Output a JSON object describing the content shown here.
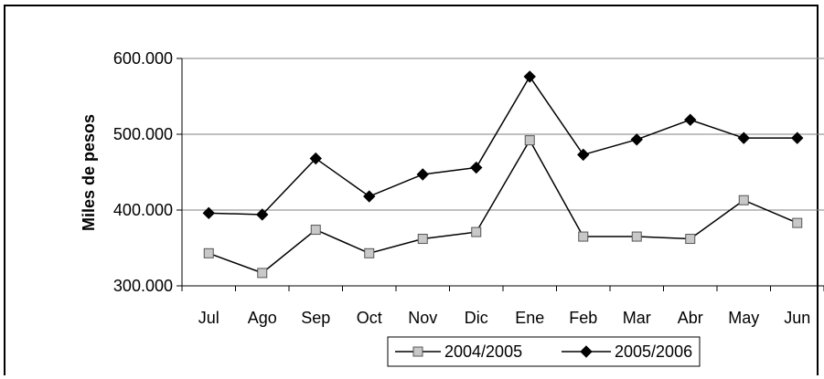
{
  "chart_data": {
    "type": "line",
    "title": "",
    "xlabel": "",
    "ylabel": "Miles de pesos",
    "categories": [
      "Jul",
      "Ago",
      "Sep",
      "Oct",
      "Nov",
      "Dic",
      "Ene",
      "Feb",
      "Mar",
      "Abr",
      "May",
      "Jun"
    ],
    "y_ticks": [
      "300.000",
      "400.000",
      "500.000",
      "600.000"
    ],
    "ylim": [
      300000,
      600000
    ],
    "grid": "horizontal",
    "legend_position": "bottom",
    "series": [
      {
        "name": "2004/2005",
        "marker": "square",
        "color": "#000000",
        "marker_fill": "#c8c8c8",
        "values": [
          343000,
          317000,
          374000,
          343000,
          362000,
          371000,
          492000,
          365000,
          365000,
          362000,
          413000,
          383000
        ]
      },
      {
        "name": "2005/2006",
        "marker": "diamond",
        "color": "#000000",
        "marker_fill": "#000000",
        "values": [
          396000,
          394000,
          468000,
          418000,
          447000,
          456000,
          576000,
          473000,
          493000,
          519000,
          495000,
          495000
        ]
      }
    ]
  }
}
